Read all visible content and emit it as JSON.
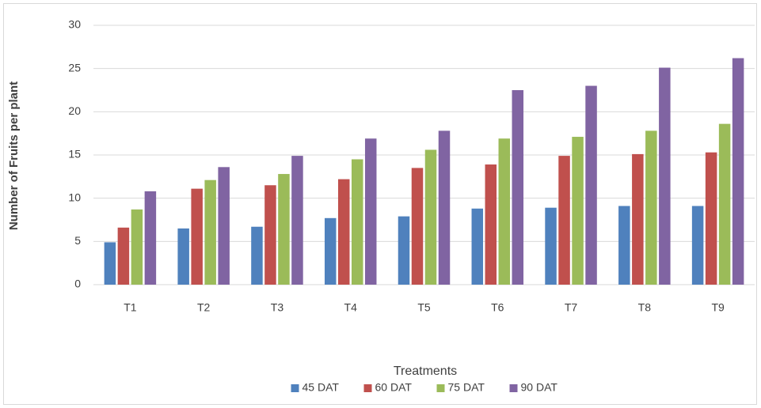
{
  "chart_data": {
    "type": "bar",
    "x_label": "Treatments",
    "y_label": "Number of Fruits per plant",
    "categories": [
      "T1",
      "T2",
      "T3",
      "T4",
      "T5",
      "T6",
      "T7",
      "T8",
      "T9"
    ],
    "series": [
      {
        "name": "45 DAT",
        "color": "#4f81bd",
        "values": [
          4.9,
          6.5,
          6.7,
          7.7,
          7.9,
          8.8,
          8.9,
          9.1,
          9.1
        ]
      },
      {
        "name": "60 DAT",
        "color": "#c0504d",
        "values": [
          6.6,
          11.1,
          11.5,
          12.2,
          13.5,
          13.9,
          14.9,
          15.1,
          15.3
        ]
      },
      {
        "name": "75 DAT",
        "color": "#9bbb59",
        "values": [
          8.7,
          12.1,
          12.8,
          14.5,
          15.6,
          16.9,
          17.1,
          17.8,
          18.6
        ]
      },
      {
        "name": "90 DAT",
        "color": "#8064a2",
        "values": [
          10.8,
          13.6,
          14.9,
          16.9,
          17.8,
          22.5,
          23.0,
          25.1,
          26.2
        ]
      }
    ],
    "ylim": [
      0,
      30
    ],
    "yticks": [
      0,
      5,
      10,
      15,
      20,
      25,
      30
    ],
    "grid": true,
    "legend": "bottom"
  }
}
